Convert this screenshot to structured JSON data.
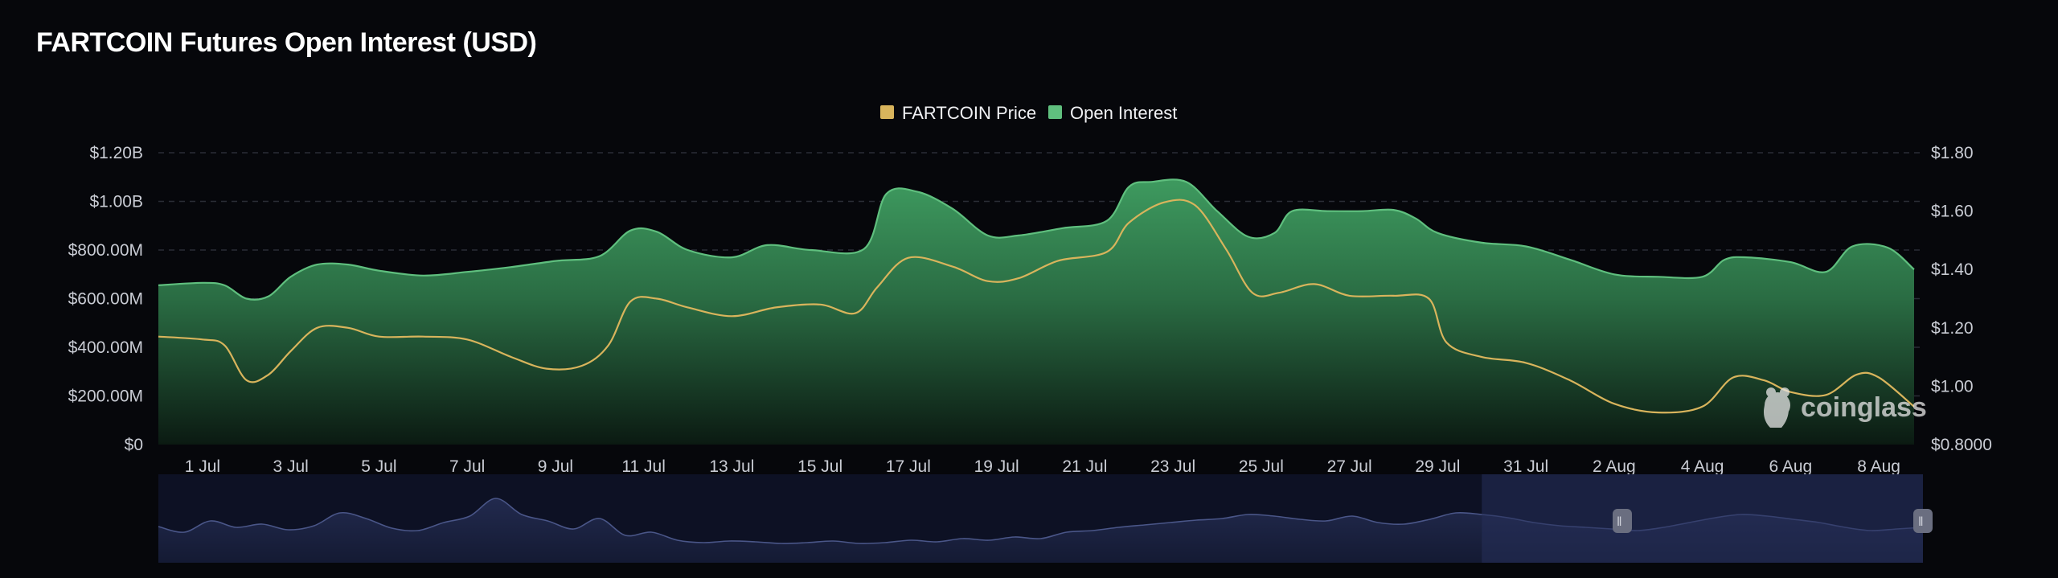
{
  "title": "FARTCOIN Futures Open Interest (USD)",
  "watermark": "coinglass",
  "colors": {
    "background": "#06070b",
    "price_line": "#d8b45c",
    "open_interest": "#5fbf7e",
    "navigator_fill": "#1a2140",
    "navigator_selection": "#26305a"
  },
  "chart_data": {
    "type": "area",
    "title": "FARTCOIN Futures Open Interest (USD)",
    "legend_position": "top-center",
    "grid": true,
    "x_ticks": [
      "1 Jul",
      "3 Jul",
      "5 Jul",
      "7 Jul",
      "9 Jul",
      "11 Jul",
      "13 Jul",
      "15 Jul",
      "17 Jul",
      "19 Jul",
      "21 Jul",
      "23 Jul",
      "25 Jul",
      "27 Jul",
      "29 Jul",
      "31 Jul",
      "2 Aug",
      "4 Aug",
      "6 Aug",
      "8 Aug"
    ],
    "x_range": [
      "30 Jun",
      "9 Aug"
    ],
    "left_axis": {
      "ticks": [
        "$0",
        "$200.00M",
        "$400.00M",
        "$600.00M",
        "$800.00M",
        "$1.00B",
        "$1.20B"
      ],
      "range": [
        0,
        1200000000
      ]
    },
    "right_axis": {
      "ticks": [
        "$0.8000",
        "$1.00",
        "$1.20",
        "$1.40",
        "$1.60",
        "$1.80"
      ],
      "range": [
        0.8,
        1.8
      ]
    },
    "series": [
      {
        "name": "Open Interest",
        "axis": "left",
        "points": [
          [
            "30 Jun",
            655000000
          ],
          [
            "1 Jul",
            665000000
          ],
          [
            "1.5 Jul",
            655000000
          ],
          [
            "2 Jul",
            600000000
          ],
          [
            "2.5 Jul",
            610000000
          ],
          [
            "3 Jul",
            690000000
          ],
          [
            "3.6 Jul",
            740000000
          ],
          [
            "4.3 Jul",
            740000000
          ],
          [
            "5 Jul",
            715000000
          ],
          [
            "6 Jul",
            695000000
          ],
          [
            "7 Jul",
            710000000
          ],
          [
            "8 Jul",
            730000000
          ],
          [
            "9 Jul",
            755000000
          ],
          [
            "10 Jul",
            775000000
          ],
          [
            "10.7 Jul",
            880000000
          ],
          [
            "11.3 Jul",
            875000000
          ],
          [
            "12 Jul",
            800000000
          ],
          [
            "13 Jul",
            770000000
          ],
          [
            "13.8 Jul",
            820000000
          ],
          [
            "14.8 Jul",
            800000000
          ],
          [
            "16 Jul",
            805000000
          ],
          [
            "16.5 Jul",
            1030000000
          ],
          [
            "17.2 Jul",
            1040000000
          ],
          [
            "18 Jul",
            970000000
          ],
          [
            "18.8 Jul",
            860000000
          ],
          [
            "19.5 Jul",
            860000000
          ],
          [
            "20.5 Jul",
            890000000
          ],
          [
            "21.5 Jul",
            920000000
          ],
          [
            "22 Jul",
            1060000000
          ],
          [
            "22.5 Jul",
            1080000000
          ],
          [
            "23.3 Jul",
            1080000000
          ],
          [
            "24 Jul",
            960000000
          ],
          [
            "24.7 Jul",
            855000000
          ],
          [
            "25.3 Jul",
            870000000
          ],
          [
            "25.7 Jul",
            960000000
          ],
          [
            "26.5 Jul",
            960000000
          ],
          [
            "27.3 Jul",
            960000000
          ],
          [
            "28 Jul",
            965000000
          ],
          [
            "28.5 Jul",
            930000000
          ],
          [
            "29 Jul",
            870000000
          ],
          [
            "30 Jul",
            830000000
          ],
          [
            "31 Jul",
            815000000
          ],
          [
            "1 Aug",
            760000000
          ],
          [
            "2 Aug",
            700000000
          ],
          [
            "3 Aug",
            690000000
          ],
          [
            "4 Aug",
            690000000
          ],
          [
            "4.5 Aug",
            760000000
          ],
          [
            "5 Aug",
            770000000
          ],
          [
            "6 Aug",
            750000000
          ],
          [
            "6.8 Aug",
            710000000
          ],
          [
            "7.4 Aug",
            815000000
          ],
          [
            "8.2 Aug",
            810000000
          ],
          [
            "8.8 Aug",
            720000000
          ]
        ]
      },
      {
        "name": "FARTCOIN Price",
        "axis": "right",
        "points": [
          [
            "30 Jun",
            1.17
          ],
          [
            "1 Jul",
            1.16
          ],
          [
            "1.5 Jul",
            1.14
          ],
          [
            "2 Jul",
            1.02
          ],
          [
            "2.5 Jul",
            1.04
          ],
          [
            "3 Jul",
            1.12
          ],
          [
            "3.6 Jul",
            1.2
          ],
          [
            "4.3 Jul",
            1.2
          ],
          [
            "5 Jul",
            1.17
          ],
          [
            "6 Jul",
            1.17
          ],
          [
            "7 Jul",
            1.16
          ],
          [
            "8 Jul",
            1.1
          ],
          [
            "8.8 Jul",
            1.06
          ],
          [
            "9.6 Jul",
            1.07
          ],
          [
            "10.2 Jul",
            1.14
          ],
          [
            "10.7 Jul",
            1.29
          ],
          [
            "11.3 Jul",
            1.3
          ],
          [
            "12 Jul",
            1.27
          ],
          [
            "13 Jul",
            1.24
          ],
          [
            "14 Jul",
            1.27
          ],
          [
            "15 Jul",
            1.28
          ],
          [
            "15.8 Jul",
            1.25
          ],
          [
            "16.3 Jul",
            1.34
          ],
          [
            "17 Jul",
            1.44
          ],
          [
            "18 Jul",
            1.41
          ],
          [
            "18.8 Jul",
            1.36
          ],
          [
            "19.5 Jul",
            1.37
          ],
          [
            "20.4 Jul",
            1.43
          ],
          [
            "21.5 Jul",
            1.46
          ],
          [
            "22 Jul",
            1.56
          ],
          [
            "22.8 Jul",
            1.63
          ],
          [
            "23.5 Jul",
            1.62
          ],
          [
            "24.2 Jul",
            1.47
          ],
          [
            "24.8 Jul",
            1.32
          ],
          [
            "25.4 Jul",
            1.32
          ],
          [
            "26.2 Jul",
            1.35
          ],
          [
            "27 Jul",
            1.31
          ],
          [
            "28 Jul",
            1.31
          ],
          [
            "28.8 Jul",
            1.3
          ],
          [
            "29.2 Jul",
            1.15
          ],
          [
            "30 Jul",
            1.1
          ],
          [
            "31 Jul",
            1.08
          ],
          [
            "1 Aug",
            1.02
          ],
          [
            "2 Aug",
            0.94
          ],
          [
            "3 Aug",
            0.91
          ],
          [
            "4 Aug",
            0.93
          ],
          [
            "4.7 Aug",
            1.03
          ],
          [
            "5.4 Aug",
            1.02
          ],
          [
            "6 Aug",
            0.98
          ],
          [
            "6.8 Aug",
            0.97
          ],
          [
            "7.5 Aug",
            1.04
          ],
          [
            "8 Aug",
            1.03
          ],
          [
            "8.8 Aug",
            0.93
          ]
        ]
      }
    ],
    "navigator": {
      "values": [
        0.45,
        0.38,
        0.52,
        0.44,
        0.48,
        0.41,
        0.46,
        0.62,
        0.55,
        0.43,
        0.4,
        0.5,
        0.58,
        0.8,
        0.6,
        0.52,
        0.42,
        0.55,
        0.34,
        0.38,
        0.28,
        0.25,
        0.27,
        0.26,
        0.24,
        0.25,
        0.27,
        0.24,
        0.25,
        0.28,
        0.26,
        0.3,
        0.28,
        0.32,
        0.3,
        0.38,
        0.4,
        0.44,
        0.47,
        0.5,
        0.53,
        0.55,
        0.6,
        0.58,
        0.54,
        0.52,
        0.58,
        0.5,
        0.48,
        0.54,
        0.62,
        0.6,
        0.56,
        0.5,
        0.46,
        0.44,
        0.42,
        0.4,
        0.44,
        0.5,
        0.56,
        0.6,
        0.58,
        0.54,
        0.5,
        0.44,
        0.4,
        0.42,
        0.44
      ],
      "selection": [
        "30 Jul",
        "9 Aug"
      ]
    }
  }
}
